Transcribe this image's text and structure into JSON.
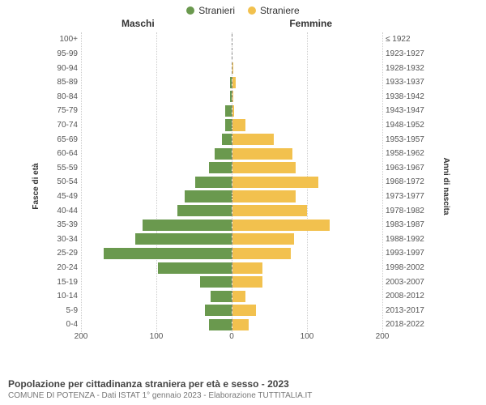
{
  "legend": {
    "male_label": "Stranieri",
    "female_label": "Straniere"
  },
  "panel_labels": {
    "left": "Maschi",
    "right": "Femmine"
  },
  "axis_titles": {
    "left": "Fasce di età",
    "right": "Anni di nascita"
  },
  "footer": {
    "title": "Popolazione per cittadinanza straniera per età e sesso - 2023",
    "subtitle": "COMUNE DI POTENZA - Dati ISTAT 1° gennaio 2023 - Elaborazione TUTTITALIA.IT"
  },
  "chart": {
    "type": "population-pyramid",
    "colors": {
      "male": "#6a994e",
      "female": "#f2c14e",
      "grid": "#cccccc",
      "center_line": "#888888",
      "background": "#ffffff"
    },
    "xlim": 200,
    "xticks": [
      200,
      100,
      0,
      100,
      200
    ],
    "bar_height_pct": 80,
    "row_count": 21,
    "rows": [
      {
        "age": "100+",
        "birth": "≤ 1922",
        "m": 0,
        "f": 0
      },
      {
        "age": "95-99",
        "birth": "1923-1927",
        "m": 0,
        "f": 0
      },
      {
        "age": "90-94",
        "birth": "1928-1932",
        "m": 0,
        "f": 2
      },
      {
        "age": "85-89",
        "birth": "1933-1937",
        "m": 2,
        "f": 5
      },
      {
        "age": "80-84",
        "birth": "1938-1942",
        "m": 2,
        "f": 2
      },
      {
        "age": "75-79",
        "birth": "1943-1947",
        "m": 8,
        "f": 3
      },
      {
        "age": "70-74",
        "birth": "1948-1952",
        "m": 8,
        "f": 18
      },
      {
        "age": "65-69",
        "birth": "1953-1957",
        "m": 12,
        "f": 55
      },
      {
        "age": "60-64",
        "birth": "1958-1962",
        "m": 22,
        "f": 80
      },
      {
        "age": "55-59",
        "birth": "1963-1967",
        "m": 30,
        "f": 85
      },
      {
        "age": "50-54",
        "birth": "1968-1972",
        "m": 48,
        "f": 115
      },
      {
        "age": "45-49",
        "birth": "1973-1977",
        "m": 62,
        "f": 85
      },
      {
        "age": "40-44",
        "birth": "1978-1982",
        "m": 72,
        "f": 100
      },
      {
        "age": "35-39",
        "birth": "1983-1987",
        "m": 118,
        "f": 130
      },
      {
        "age": "30-34",
        "birth": "1988-1992",
        "m": 128,
        "f": 82
      },
      {
        "age": "25-29",
        "birth": "1993-1997",
        "m": 170,
        "f": 78
      },
      {
        "age": "20-24",
        "birth": "1998-2002",
        "m": 98,
        "f": 40
      },
      {
        "age": "15-19",
        "birth": "2003-2007",
        "m": 42,
        "f": 40
      },
      {
        "age": "10-14",
        "birth": "2008-2012",
        "m": 28,
        "f": 18
      },
      {
        "age": "5-9",
        "birth": "2013-2017",
        "m": 35,
        "f": 32
      },
      {
        "age": "0-4",
        "birth": "2018-2022",
        "m": 30,
        "f": 22
      }
    ]
  }
}
